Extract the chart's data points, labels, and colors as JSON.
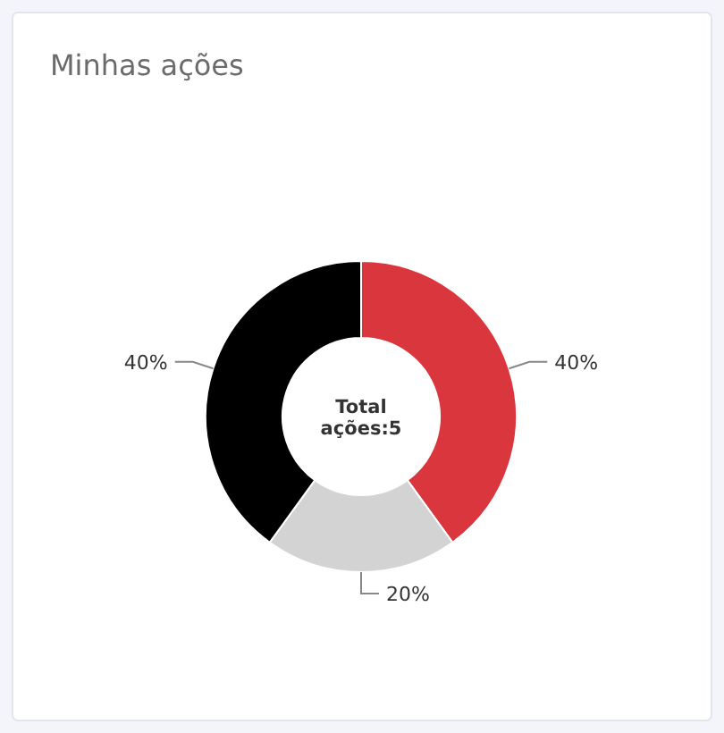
{
  "chart_data": {
    "type": "donut",
    "title": "Minhas ações",
    "categories": [
      null,
      null,
      null
    ],
    "values": [
      40,
      20,
      40
    ],
    "colors": [
      "#d9363e",
      "#d3d3d3",
      "#000000"
    ],
    "value_labels": [
      "40%",
      "20%",
      "40%"
    ],
    "annotations": [
      "Total ações:5"
    ]
  }
}
